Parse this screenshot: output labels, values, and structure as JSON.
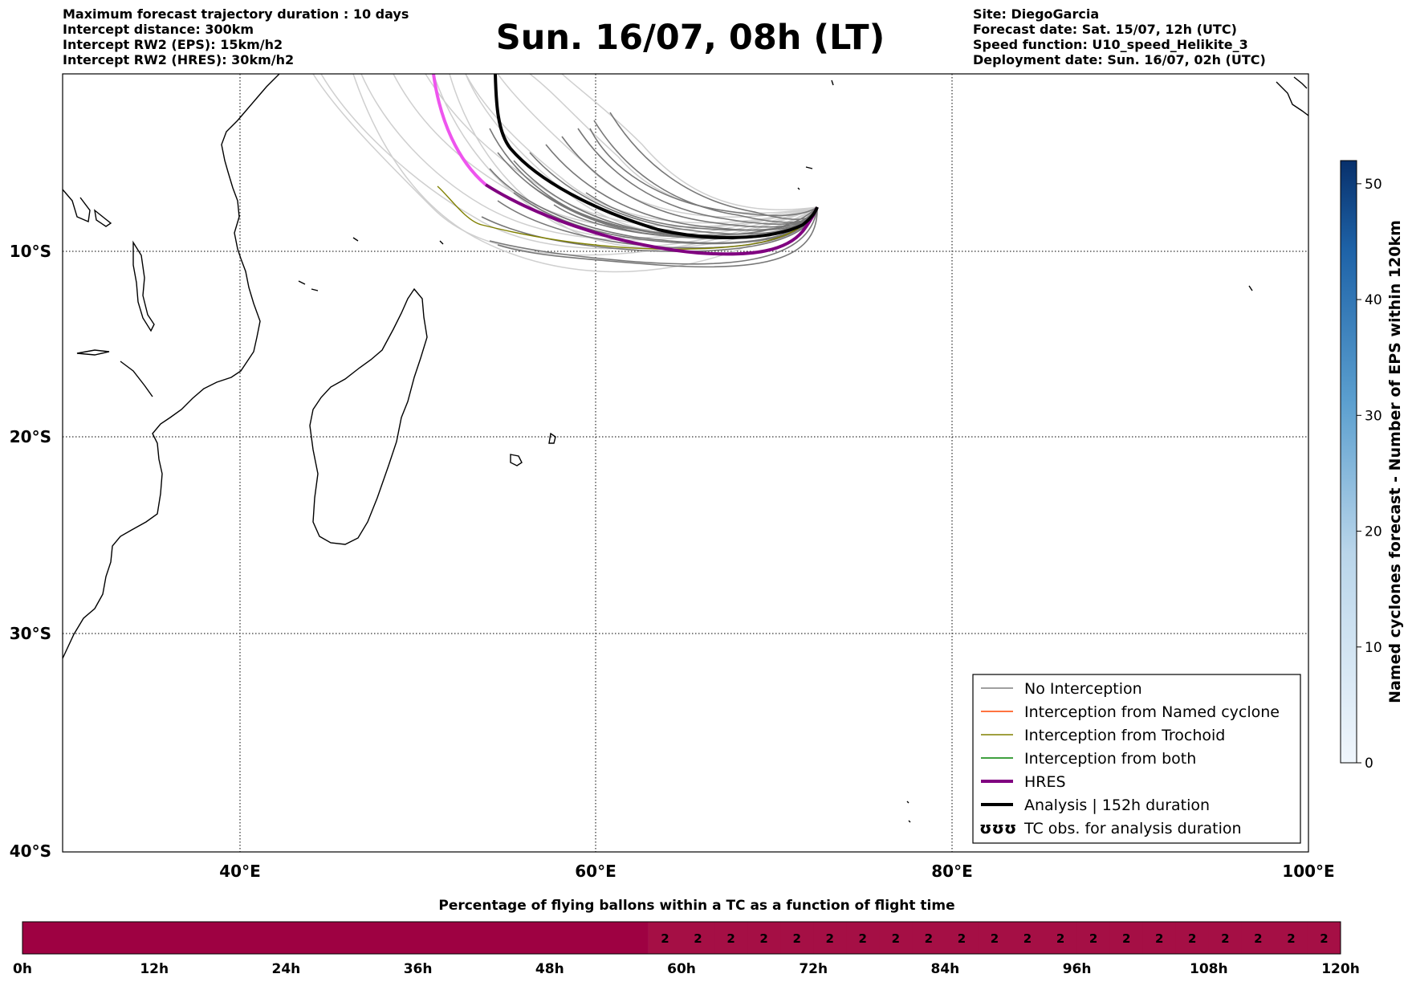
{
  "header": {
    "left_lines": [
      "Maximum forecast trajectory duration : 10 days",
      "Intercept distance: 300km",
      "Intercept RW2 (EPS):  15km/h2",
      "Intercept RW2 (HRES): 30km/h2"
    ],
    "title": "Sun. 16/07, 08h (LT)",
    "right_lines": [
      "Site: DiegoGarcia",
      "Forecast date: Sat. 15/07, 12h (UTC)",
      "Speed function: U10_speed_Helikite_3",
      "Deployment date: Sun. 16/07, 02h (UTC)"
    ]
  },
  "map": {
    "lon_range": [
      30,
      100
    ],
    "lat_range": [
      -40,
      -0.1
    ],
    "lon_labels": [
      "40°E",
      "60°E",
      "80°E",
      "100°E"
    ],
    "lat_labels": [
      "10°S",
      "20°S",
      "30°S",
      "40°S"
    ],
    "site": {
      "name": "DiegoGarcia",
      "lon": 72.4,
      "lat": -7.3
    }
  },
  "legend": {
    "items": [
      {
        "label": "No Interception",
        "color": "#808080",
        "width": 1
      },
      {
        "label": "Interception from Named cyclone",
        "color": "#ff4500",
        "width": 1
      },
      {
        "label": "Interception from Trochoid",
        "color": "#808000",
        "width": 1
      },
      {
        "label": "Interception from both",
        "color": "#008000",
        "width": 1
      },
      {
        "label": "HRES",
        "color": "#800080",
        "width": 4
      },
      {
        "label": "Analysis | 152h duration",
        "color": "#000000",
        "width": 4
      },
      {
        "label": "TC obs. for analysis duration",
        "symbol": "ʊʊʊ"
      }
    ]
  },
  "colorbar": {
    "label": "Named cyclones forecast - Number of EPS within 120km",
    "ticks": [
      "0",
      "10",
      "20",
      "30",
      "40",
      "50"
    ],
    "min": 0,
    "max": 52,
    "color_low": "#deebf7",
    "color_high": "#08306b"
  },
  "timebar": {
    "title": "Percentage of flying ballons within a TC as a function of flight time",
    "tick_labels": [
      "0h",
      "12h",
      "24h",
      "36h",
      "48h",
      "60h",
      "72h",
      "84h",
      "96h",
      "108h",
      "120h"
    ],
    "cell_label": "2",
    "labeled_from_h": 57,
    "labeled_to_h": 120,
    "color_low": "#9e0142",
    "color_high": "#a50f45"
  }
}
